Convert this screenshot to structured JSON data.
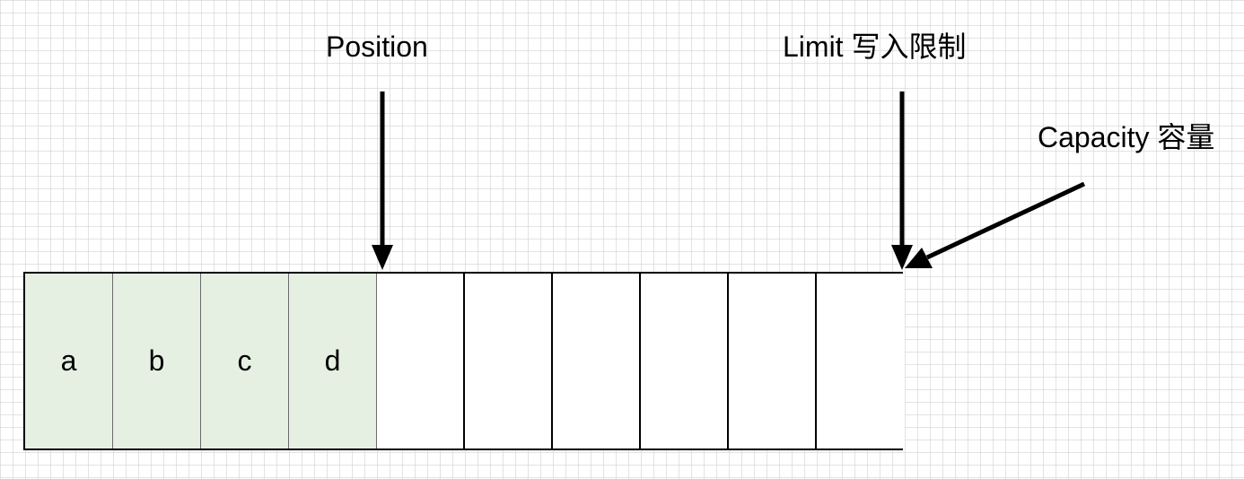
{
  "labels": {
    "position": "Position",
    "limit": "Limit 写入限制",
    "capacity": "Capacity 容量"
  },
  "buffer": {
    "filled_cells": [
      "a",
      "b",
      "c",
      "d"
    ],
    "empty_cell_count": 6,
    "filled_color": "#e5f0e3",
    "empty_color": "#ffffff"
  }
}
